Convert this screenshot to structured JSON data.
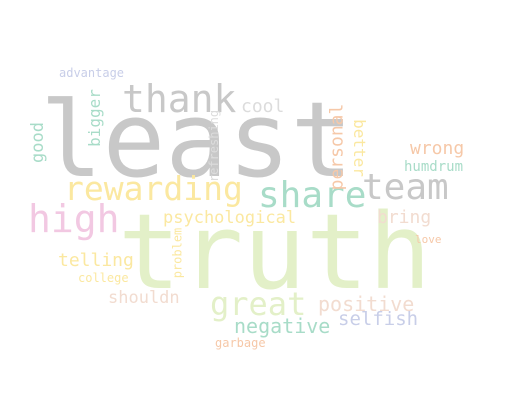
{
  "words": [
    {
      "id": "truth",
      "text": "truth",
      "color": "#e3f0c8"
    },
    {
      "id": "least",
      "text": "least",
      "color": "#c8c8c8"
    },
    {
      "id": "thank",
      "text": "thank",
      "color": "#c8c8c8"
    },
    {
      "id": "rewarding",
      "text": "rewarding",
      "color": "#fbe8a0"
    },
    {
      "id": "share",
      "text": "share",
      "color": "#a8dcc8"
    },
    {
      "id": "team",
      "text": "team",
      "color": "#c8c8c8"
    },
    {
      "id": "high",
      "text": "high",
      "color": "#f2c8e2"
    },
    {
      "id": "great",
      "text": "great",
      "color": "#e3f0c8"
    },
    {
      "id": "positive",
      "text": "positive",
      "color": "#f2dcd0"
    },
    {
      "id": "negative",
      "text": "negative",
      "color": "#a8dcc8"
    },
    {
      "id": "selfish",
      "text": "selfish",
      "color": "#c8cee8"
    },
    {
      "id": "telling",
      "text": "telling",
      "color": "#fbe8a0"
    },
    {
      "id": "shouldn",
      "text": "shouldn",
      "color": "#f2dcd0"
    },
    {
      "id": "psychological",
      "text": "psychological",
      "color": "#fbe8a0"
    },
    {
      "id": "bring",
      "text": "bring",
      "color": "#f2dcd0"
    },
    {
      "id": "wrong",
      "text": "wrong",
      "color": "#f6c8a8"
    },
    {
      "id": "humdrum",
      "text": "humdrum",
      "color": "#a8dcc8"
    },
    {
      "id": "cool",
      "text": "cool",
      "color": "#dcdcdc"
    },
    {
      "id": "personal",
      "text": "personal",
      "color": "#f6c8a8"
    },
    {
      "id": "better",
      "text": "better",
      "color": "#fbe8a0"
    },
    {
      "id": "refreshing",
      "text": "refreshing",
      "color": "#dcdcdc"
    },
    {
      "id": "bigger",
      "text": "bigger",
      "color": "#a8dcc8"
    },
    {
      "id": "good",
      "text": "good",
      "color": "#a8dcc8"
    },
    {
      "id": "advantage",
      "text": "advantage",
      "color": "#c8cee8"
    },
    {
      "id": "problem",
      "text": "problem",
      "color": "#fbe8a0"
    },
    {
      "id": "college",
      "text": "college",
      "color": "#fbe8a0"
    },
    {
      "id": "love",
      "text": "love",
      "color": "#f6c8a8"
    },
    {
      "id": "garbage",
      "text": "garbage",
      "color": "#f6c8a8"
    }
  ]
}
